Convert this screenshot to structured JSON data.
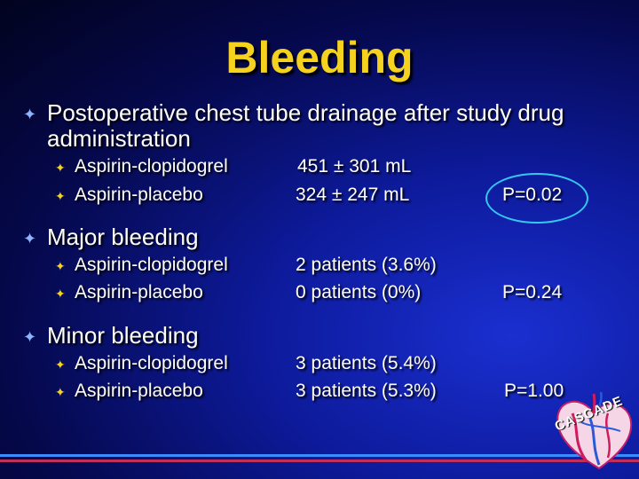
{
  "title": "Bleeding",
  "sections": [
    {
      "heading_line1": "Postoperative chest tube drainage after study drug",
      "heading_line2": "administration",
      "rows": [
        {
          "arm": "Aspirin-clopidogrel",
          "value": "451 ± 301 mL",
          "p": ""
        },
        {
          "arm": "Aspirin-placebo",
          "value": "324 ± 247 mL",
          "p": "P=0.02"
        }
      ]
    },
    {
      "heading_line1": "Major bleeding",
      "rows": [
        {
          "arm": "Aspirin-clopidogrel",
          "value": "2 patients (3.6%)",
          "p": ""
        },
        {
          "arm": "Aspirin-placebo",
          "value": "0 patients (0%)",
          "p": "P=0.24"
        }
      ]
    },
    {
      "heading_line1": "Minor bleeding",
      "rows": [
        {
          "arm": "Aspirin-clopidogrel",
          "value": "3 patients (5.4%)",
          "p": ""
        },
        {
          "arm": "Aspirin-placebo",
          "value": "3 patients (5.3%)",
          "p": "P=1.00"
        }
      ]
    }
  ],
  "logo": {
    "text": "CASCADE",
    "icon": "heart-logo-icon"
  },
  "bullets": {
    "level1": "✦",
    "level2": "✦"
  },
  "colors": {
    "title": "#f5d21e",
    "highlight_oval": "#35c7f2",
    "stripe": "#c0305a"
  }
}
